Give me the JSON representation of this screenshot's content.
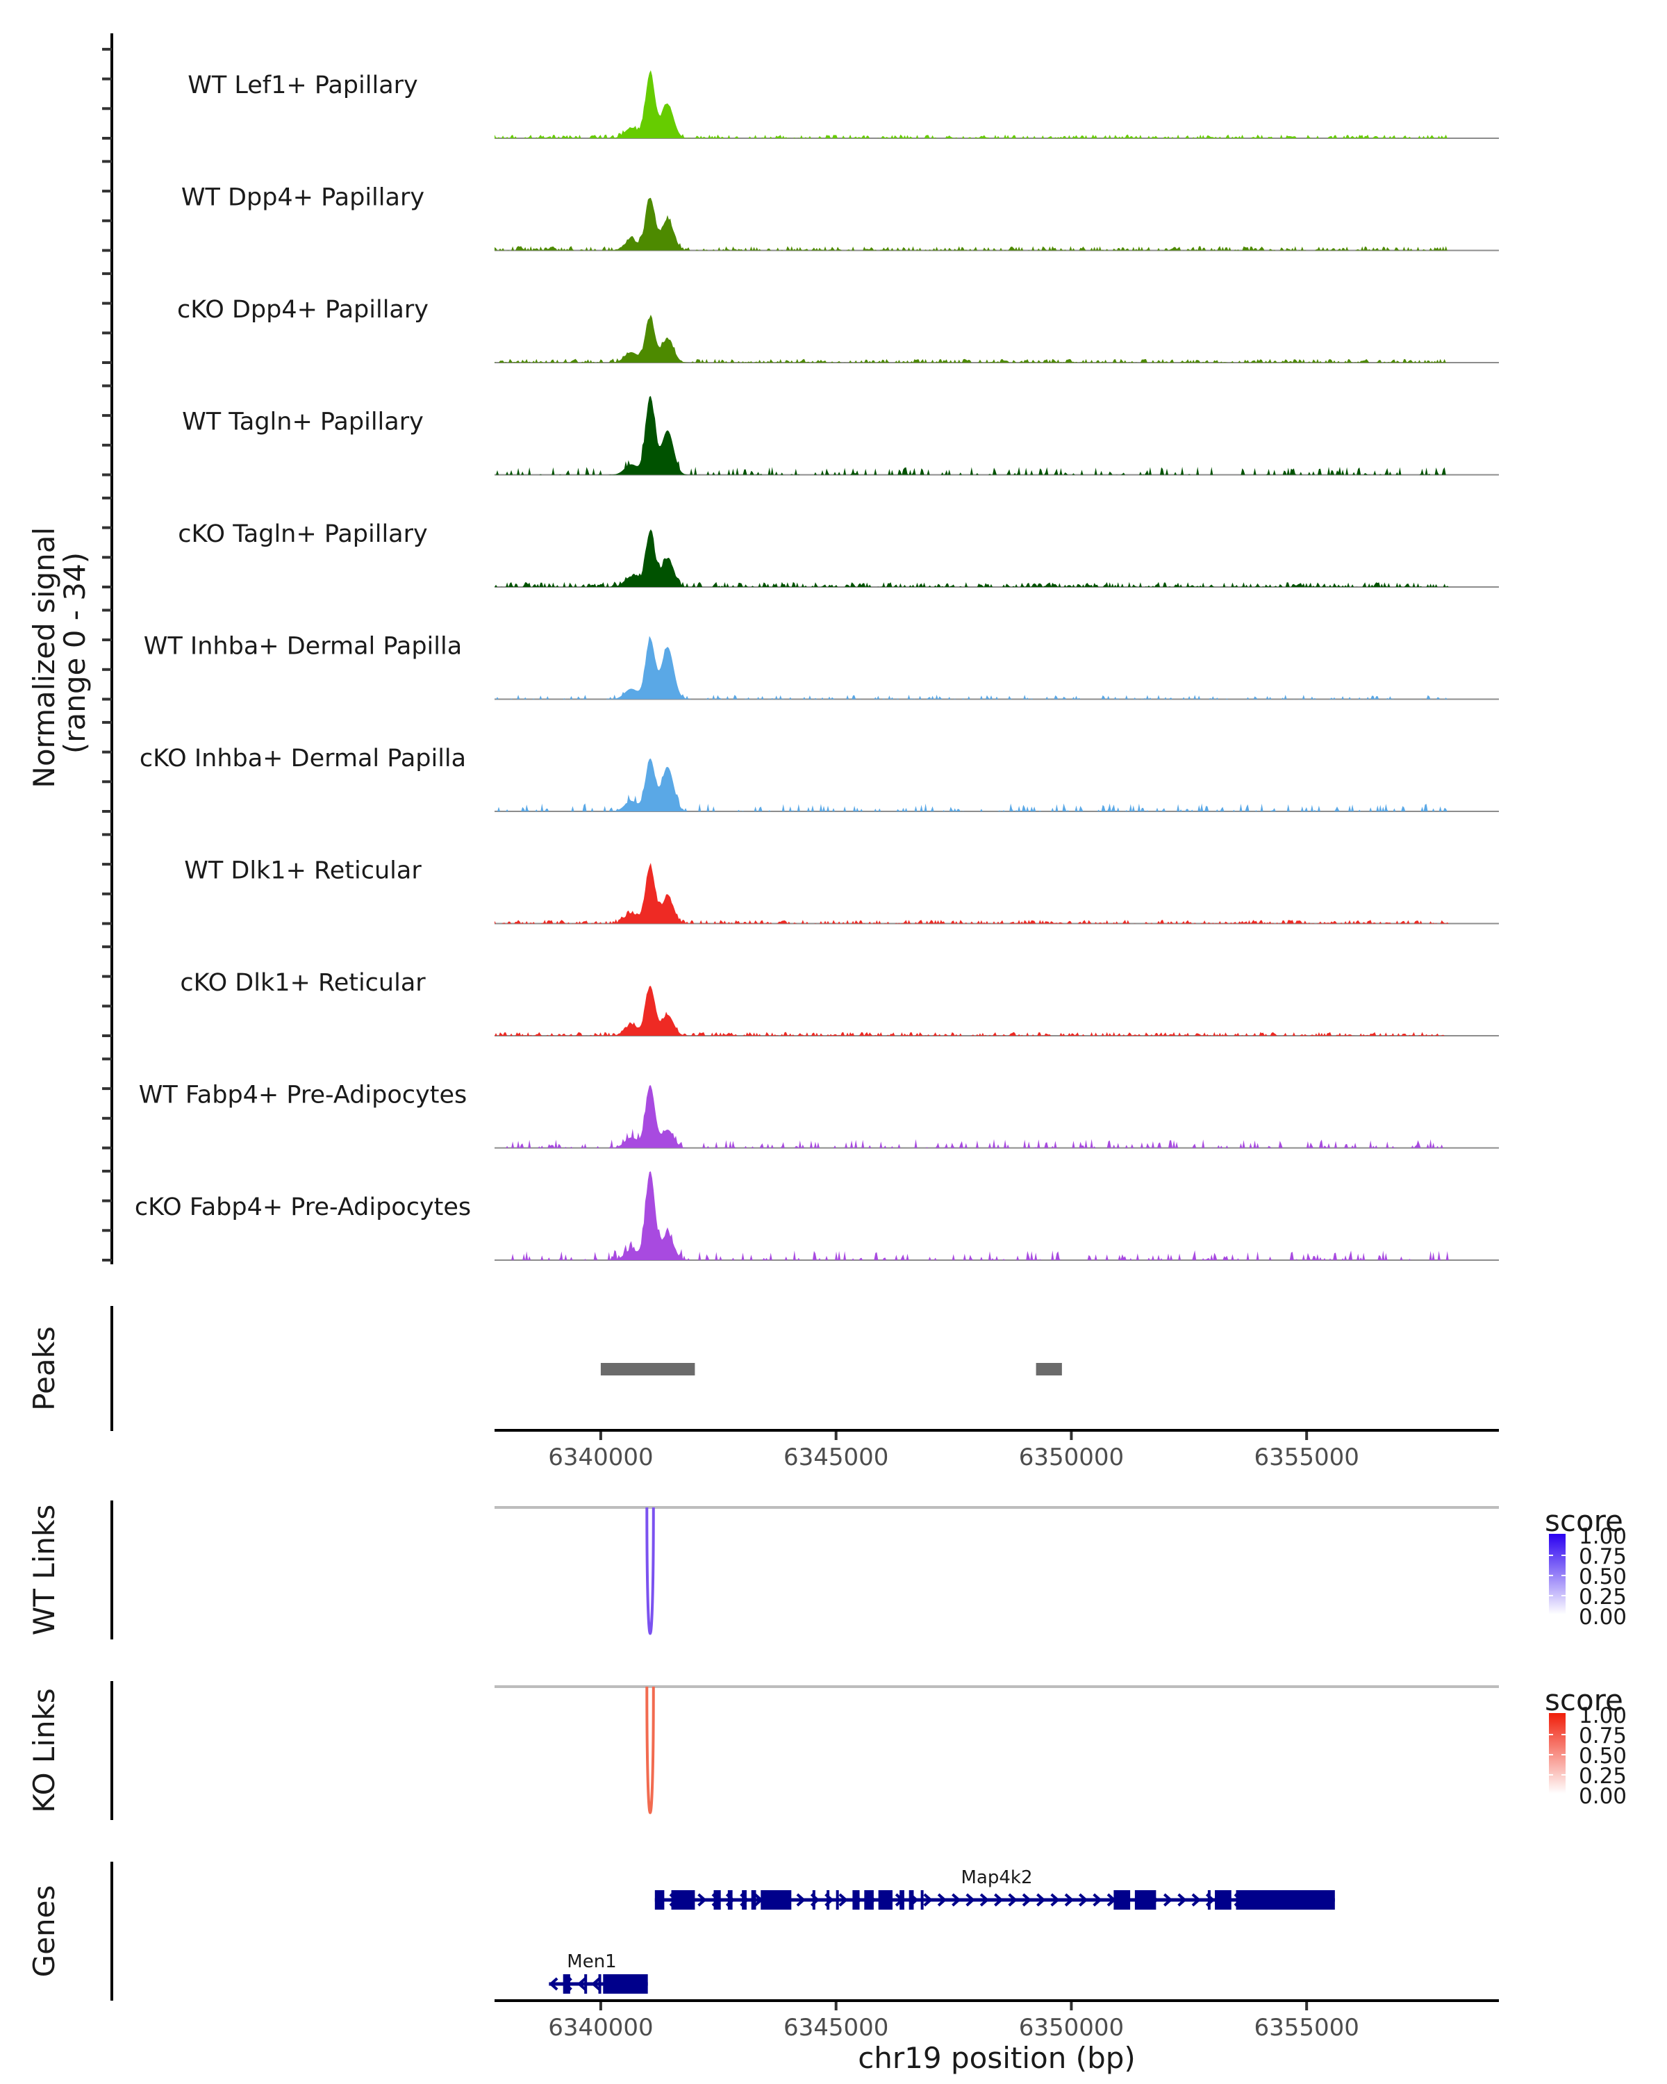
{
  "chart_data": {
    "type": "area",
    "title": "",
    "region": {
      "chrom": "chr19",
      "start": 6337743,
      "end": 6359086
    },
    "xlabel": "chr19 position (bp)",
    "xticks": [
      6340000,
      6345000,
      6350000,
      6355000
    ],
    "xtick_labels": [
      "6340000",
      "6345000",
      "6350000",
      "6355000"
    ],
    "coverage": {
      "ylabel": "Normalized signal\n(range 0 - 34)",
      "ylabel_line1": "Normalized signal",
      "ylabel_line2": "(range 0 - 34)",
      "ylim": [
        0,
        34
      ],
      "tracks": [
        {
          "name": "WT Lef1+ Papillary",
          "color": "#66cc00",
          "peak_height": 25,
          "secondary": 13,
          "noise": 0.12,
          "sparse": false
        },
        {
          "name": "WT Dpp4+ Papillary",
          "color": "#4d8a00",
          "peak_height": 20,
          "secondary": 12,
          "noise": 0.14,
          "sparse": false
        },
        {
          "name": "cKO Dpp4+ Papillary",
          "color": "#4d8a00",
          "peak_height": 17,
          "secondary": 9,
          "noise": 0.12,
          "sparse": false
        },
        {
          "name": "WT Tagln+ Papillary",
          "color": "#005200",
          "peak_height": 30,
          "secondary": 17,
          "noise": 0.18,
          "sparse": true
        },
        {
          "name": "cKO Tagln+ Papillary",
          "color": "#005200",
          "peak_height": 21,
          "secondary": 11,
          "noise": 0.16,
          "sparse": false
        },
        {
          "name": "WT Inhba+ Dermal Papilla",
          "color": "#5aa8e6",
          "peak_height": 23,
          "secondary": 20,
          "noise": 0.1,
          "sparse": true
        },
        {
          "name": "cKO Inhba+ Dermal Papilla",
          "color": "#5aa8e6",
          "peak_height": 20,
          "secondary": 17,
          "noise": 0.18,
          "sparse": true
        },
        {
          "name": "WT Dlk1+ Reticular",
          "color": "#ee2a24",
          "peak_height": 22,
          "secondary": 10,
          "noise": 0.12,
          "sparse": false
        },
        {
          "name": "cKO Dlk1+ Reticular",
          "color": "#ee2a24",
          "peak_height": 19,
          "secondary": 8,
          "noise": 0.12,
          "sparse": false
        },
        {
          "name": "WT Fabp4+ Pre-Adipocytes",
          "color": "#a84ae0",
          "peak_height": 24,
          "secondary": 7,
          "noise": 0.2,
          "sparse": true
        },
        {
          "name": "cKO Fabp4+ Pre-Adipocytes",
          "color": "#a84ae0",
          "peak_height": 34,
          "secondary": 10,
          "noise": 0.22,
          "sparse": true
        }
      ],
      "main_peak_center": 6341050,
      "secondary_peak_center": 6341420
    },
    "peaks": {
      "label": "Peaks",
      "color": "#6b6b6b",
      "intervals": [
        [
          6340000,
          6342000
        ],
        [
          6349250,
          6349800
        ]
      ]
    },
    "links": [
      {
        "label": "WT Links",
        "color": "#7b52f0",
        "from": 6340980,
        "to": 6341120,
        "score": 1.0,
        "legend": {
          "title": "score",
          "ticks": [
            "1.00",
            "0.75",
            "0.50",
            "0.25",
            "0.00"
          ],
          "high": "#2a00f0",
          "low": "#ffffff"
        }
      },
      {
        "label": "KO Links",
        "color": "#f26b50",
        "from": 6340980,
        "to": 6341120,
        "score": 0.7,
        "legend": {
          "title": "score",
          "ticks": [
            "1.00",
            "0.75",
            "0.50",
            "0.25",
            "0.00"
          ],
          "high": "#f01e0a",
          "low": "#ffffff"
        }
      }
    ],
    "genes": {
      "label": "Genes",
      "color": "#00008b",
      "items": [
        {
          "name": "Map4k2",
          "strand": "+",
          "start": 6341150,
          "end": 6355600,
          "row": 0,
          "exons": [
            [
              6341150,
              6341350
            ],
            [
              6341500,
              6342000
            ],
            [
              6342400,
              6342550
            ],
            [
              6342700,
              6342800
            ],
            [
              6343000,
              6343100
            ],
            [
              6343200,
              6343300
            ],
            [
              6343400,
              6344050
            ],
            [
              6344500,
              6344550
            ],
            [
              6344800,
              6344850
            ],
            [
              6345000,
              6345050
            ],
            [
              6345350,
              6345500
            ],
            [
              6345600,
              6345800
            ],
            [
              6345900,
              6346200
            ],
            [
              6346350,
              6346450
            ],
            [
              6346550,
              6346650
            ],
            [
              6346800,
              6346850
            ],
            [
              6350900,
              6351250
            ],
            [
              6351350,
              6351800
            ],
            [
              6352900,
              6352950
            ],
            [
              6353050,
              6353400
            ],
            [
              6353500,
              6355600
            ]
          ]
        },
        {
          "name": "Men1",
          "strand": "-",
          "start": 6338900,
          "end": 6341000,
          "row": 1,
          "exons": [
            [
              6339200,
              6339350
            ],
            [
              6339650,
              6339700
            ],
            [
              6339950,
              6340000
            ],
            [
              6340050,
              6341000
            ]
          ]
        }
      ]
    }
  }
}
